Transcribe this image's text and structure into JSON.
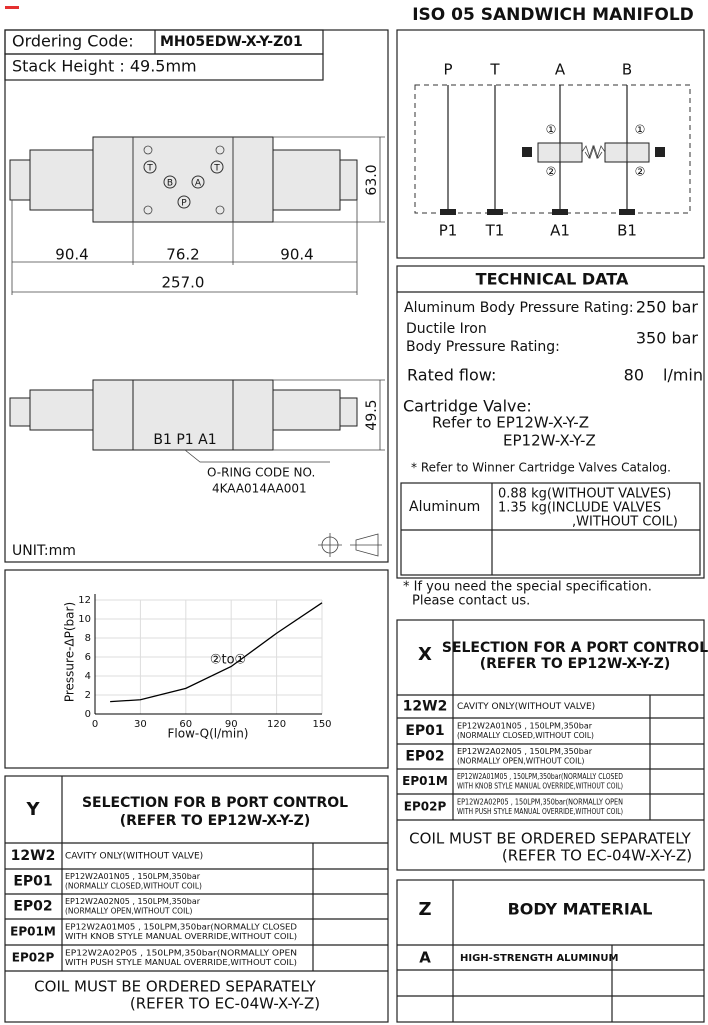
{
  "header": {
    "title": "ISO 05 SANDWICH MANIFOLD"
  },
  "ordering": {
    "code_label": "Ordering Code:",
    "code": "MH05EDW-X-Y-Z01",
    "stack_height": "Stack Height : 49.5mm"
  },
  "drawing": {
    "dims": [
      "90.4",
      "76.2",
      "90.4",
      "257.0",
      "63.0",
      "49.5"
    ],
    "ports": [
      "T",
      "B",
      "A",
      "T",
      "P"
    ],
    "side_ports": "B1  P1  A1",
    "oring": [
      "O-RING CODE NO.",
      "4KAA014AA001"
    ],
    "unit": "UNIT:mm"
  },
  "schematic": {
    "top": [
      "P",
      "T",
      "A",
      "B"
    ],
    "bottom": [
      "P1",
      "T1",
      "A1",
      "B1"
    ],
    "markers": [
      "①",
      "②",
      "①",
      "②"
    ]
  },
  "technical": {
    "title": "TECHNICAL DATA",
    "aluminum": [
      "Aluminum Body Pressure Rating:",
      "250 bar"
    ],
    "ductile": [
      "Ductile Iron",
      "Body Pressure Rating:",
      "350 bar"
    ],
    "flow": [
      "Rated flow:",
      "80",
      "l/min"
    ],
    "cartridge": [
      "Cartridge Valve:",
      "Refer to EP12W-X-Y-Z",
      "EP12W-X-Y-Z"
    ],
    "note": "* Refer to Winner Cartridge Valves Catalog.",
    "weight": {
      "material": "Aluminum",
      "lines": [
        "0.88  kg(WITHOUT VALVES)",
        "1.35  kg(INCLUDE VALVES",
        ",WITHOUT COIL)"
      ]
    },
    "contact": [
      "* If you need the special specification.",
      "Please contact us."
    ]
  },
  "chart": {
    "type": "line",
    "x_label": "Flow-Q(l/min)",
    "y_label": "Pressure-ΔP(bar)",
    "annotation": "②to①",
    "x": [
      10,
      30,
      60,
      90,
      120,
      150
    ],
    "values": [
      1.3,
      1.5,
      2.7,
      5,
      8.5,
      11.7
    ],
    "color": "#000000",
    "xlim": [
      0,
      150
    ],
    "xticks": [
      0,
      30,
      60,
      90,
      120,
      150
    ],
    "ylim": [
      0,
      12
    ],
    "yticks": [
      0,
      2,
      4,
      6,
      8,
      10,
      12
    ],
    "grid": true
  },
  "y_table": {
    "code": "Y",
    "title": [
      "SELECTION FOR B PORT CONTROL",
      "(REFER TO EP12W-X-Y-Z)"
    ],
    "rows": [
      {
        "code": "12W2",
        "desc": [
          "CAVITY ONLY(WITHOUT VALVE)"
        ]
      },
      {
        "code": "EP01",
        "desc": [
          "EP12W2A01N05 , 150LPM,350bar",
          "(NORMALLY CLOSED,WITHOUT COIL)"
        ]
      },
      {
        "code": "EP02",
        "desc": [
          "EP12W2A02N05 , 150LPM,350bar",
          "(NORMALLY OPEN,WITHOUT COIL)"
        ]
      },
      {
        "code": "EP01M",
        "desc": [
          "EP12W2A01M05 , 150LPM,350bar(NORMALLY CLOSED",
          "WITH KNOB STYLE MANUAL OVERRIDE,WITHOUT COIL)"
        ]
      },
      {
        "code": "EP02P",
        "desc": [
          "EP12W2A02P05 , 150LPM,350bar(NORMALLY OPEN",
          "WITH PUSH STYLE MANUAL OVERRIDE,WITHOUT COIL)"
        ]
      }
    ],
    "footer": [
      "COIL MUST BE ORDERED SEPARATELY",
      "(REFER TO EC-04W-X-Y-Z)"
    ]
  },
  "x_table": {
    "code": "X",
    "title": [
      "SELECTION FOR A PORT CONTROL",
      "(REFER TO EP12W-X-Y-Z)"
    ],
    "rows": [
      {
        "code": "12W2",
        "desc": [
          "CAVITY ONLY(WITHOUT VALVE)"
        ]
      },
      {
        "code": "EP01",
        "desc": [
          "EP12W2A01N05 , 150LPM,350bar",
          "(NORMALLY CLOSED,WITHOUT COIL)"
        ]
      },
      {
        "code": "EP02",
        "desc": [
          "EP12W2A02N05 , 150LPM,350bar",
          "(NORMALLY OPEN,WITHOUT COIL)"
        ]
      },
      {
        "code": "EP01M",
        "desc": [
          "EP12W2A01M05 , 150LPM,350bar(NORMALLY CLOSED",
          "WITH KNOB STYLE MANUAL OVERRIDE,WITHOUT COIL)"
        ]
      },
      {
        "code": "EP02P",
        "desc": [
          "EP12W2A02P05 , 150LPM,350bar(NORMALLY OPEN",
          "WITH PUSH STYLE MANUAL OVERRIDE,WITHOUT COIL)"
        ]
      }
    ],
    "footer": [
      "COIL MUST BE ORDERED SEPARATELY",
      "(REFER TO EC-04W-X-Y-Z)"
    ]
  },
  "z_table": {
    "code": "Z",
    "title": "BODY MATERIAL",
    "rows": [
      {
        "code": "A",
        "desc": "HIGH-STRENGTH ALUMINUM"
      }
    ]
  }
}
